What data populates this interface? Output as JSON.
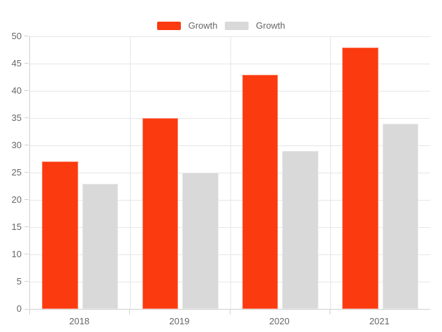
{
  "chart_data": {
    "type": "bar",
    "title": "",
    "categories": [
      "2018",
      "2019",
      "2020",
      "2021"
    ],
    "series": [
      {
        "name": "Growth",
        "color": "#fb3a0f",
        "values": [
          27,
          35,
          43,
          48
        ]
      },
      {
        "name": "Growth",
        "color": "#d9d9d9",
        "values": [
          23,
          25,
          29,
          34
        ]
      }
    ],
    "ylim": [
      0,
      50
    ],
    "yticks": [
      0,
      5,
      10,
      15,
      20,
      25,
      30,
      35,
      40,
      45,
      50
    ],
    "grid": true,
    "legend_position": "top",
    "colors": {
      "grid_line": "#e6e6e6",
      "axis_line": "#cfcfcf",
      "axis_text": "#666666",
      "background": "#ffffff"
    }
  }
}
